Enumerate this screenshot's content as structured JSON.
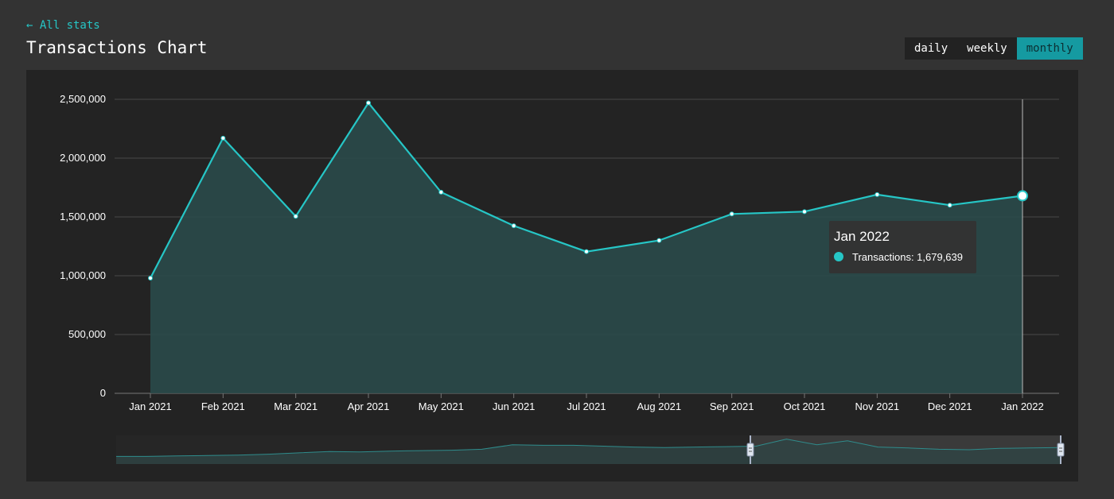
{
  "header": {
    "back_link": "← All stats",
    "title": "Transactions Chart"
  },
  "period_toggle": {
    "options": [
      "daily",
      "weekly",
      "monthly"
    ],
    "selected": "monthly"
  },
  "colors": {
    "accent": "#26c6c6",
    "area_fill": "#2a4a4a",
    "panel_bg": "#232323",
    "page_bg": "#333333"
  },
  "chart_data": {
    "type": "area",
    "categories": [
      "Jan 2021",
      "Feb 2021",
      "Mar 2021",
      "Apr 2021",
      "May 2021",
      "Jun 2021",
      "Jul 2021",
      "Aug 2021",
      "Sep 2021",
      "Oct 2021",
      "Nov 2021",
      "Dec 2021",
      "Jan 2022"
    ],
    "series": [
      {
        "name": "Transactions",
        "values": [
          980000,
          2170000,
          1505000,
          2470000,
          1710000,
          1425000,
          1205000,
          1300000,
          1525000,
          1545000,
          1690000,
          1600000,
          1679639
        ]
      }
    ],
    "ylim": [
      0,
      2500000
    ],
    "y_ticks": [
      "0",
      "500,000",
      "1,000,000",
      "1,500,000",
      "2,000,000",
      "2,500,000"
    ],
    "grid": true,
    "highlighted_index": 12,
    "tooltip": {
      "title": "Jan 2022",
      "text": "Transactions: 1,679,639"
    },
    "navigator": {
      "selected_range": "right portion",
      "overview_values": [
        0.2,
        0.2,
        0.22,
        0.24,
        0.26,
        0.3,
        0.36,
        0.42,
        0.4,
        0.44,
        0.46,
        0.48,
        0.52,
        0.72,
        0.7,
        0.7,
        0.66,
        0.62,
        0.6,
        0.62,
        0.64,
        0.66,
        0.98,
        0.72,
        0.9,
        0.62,
        0.58,
        0.52,
        0.5,
        0.56,
        0.58,
        0.6
      ]
    }
  }
}
